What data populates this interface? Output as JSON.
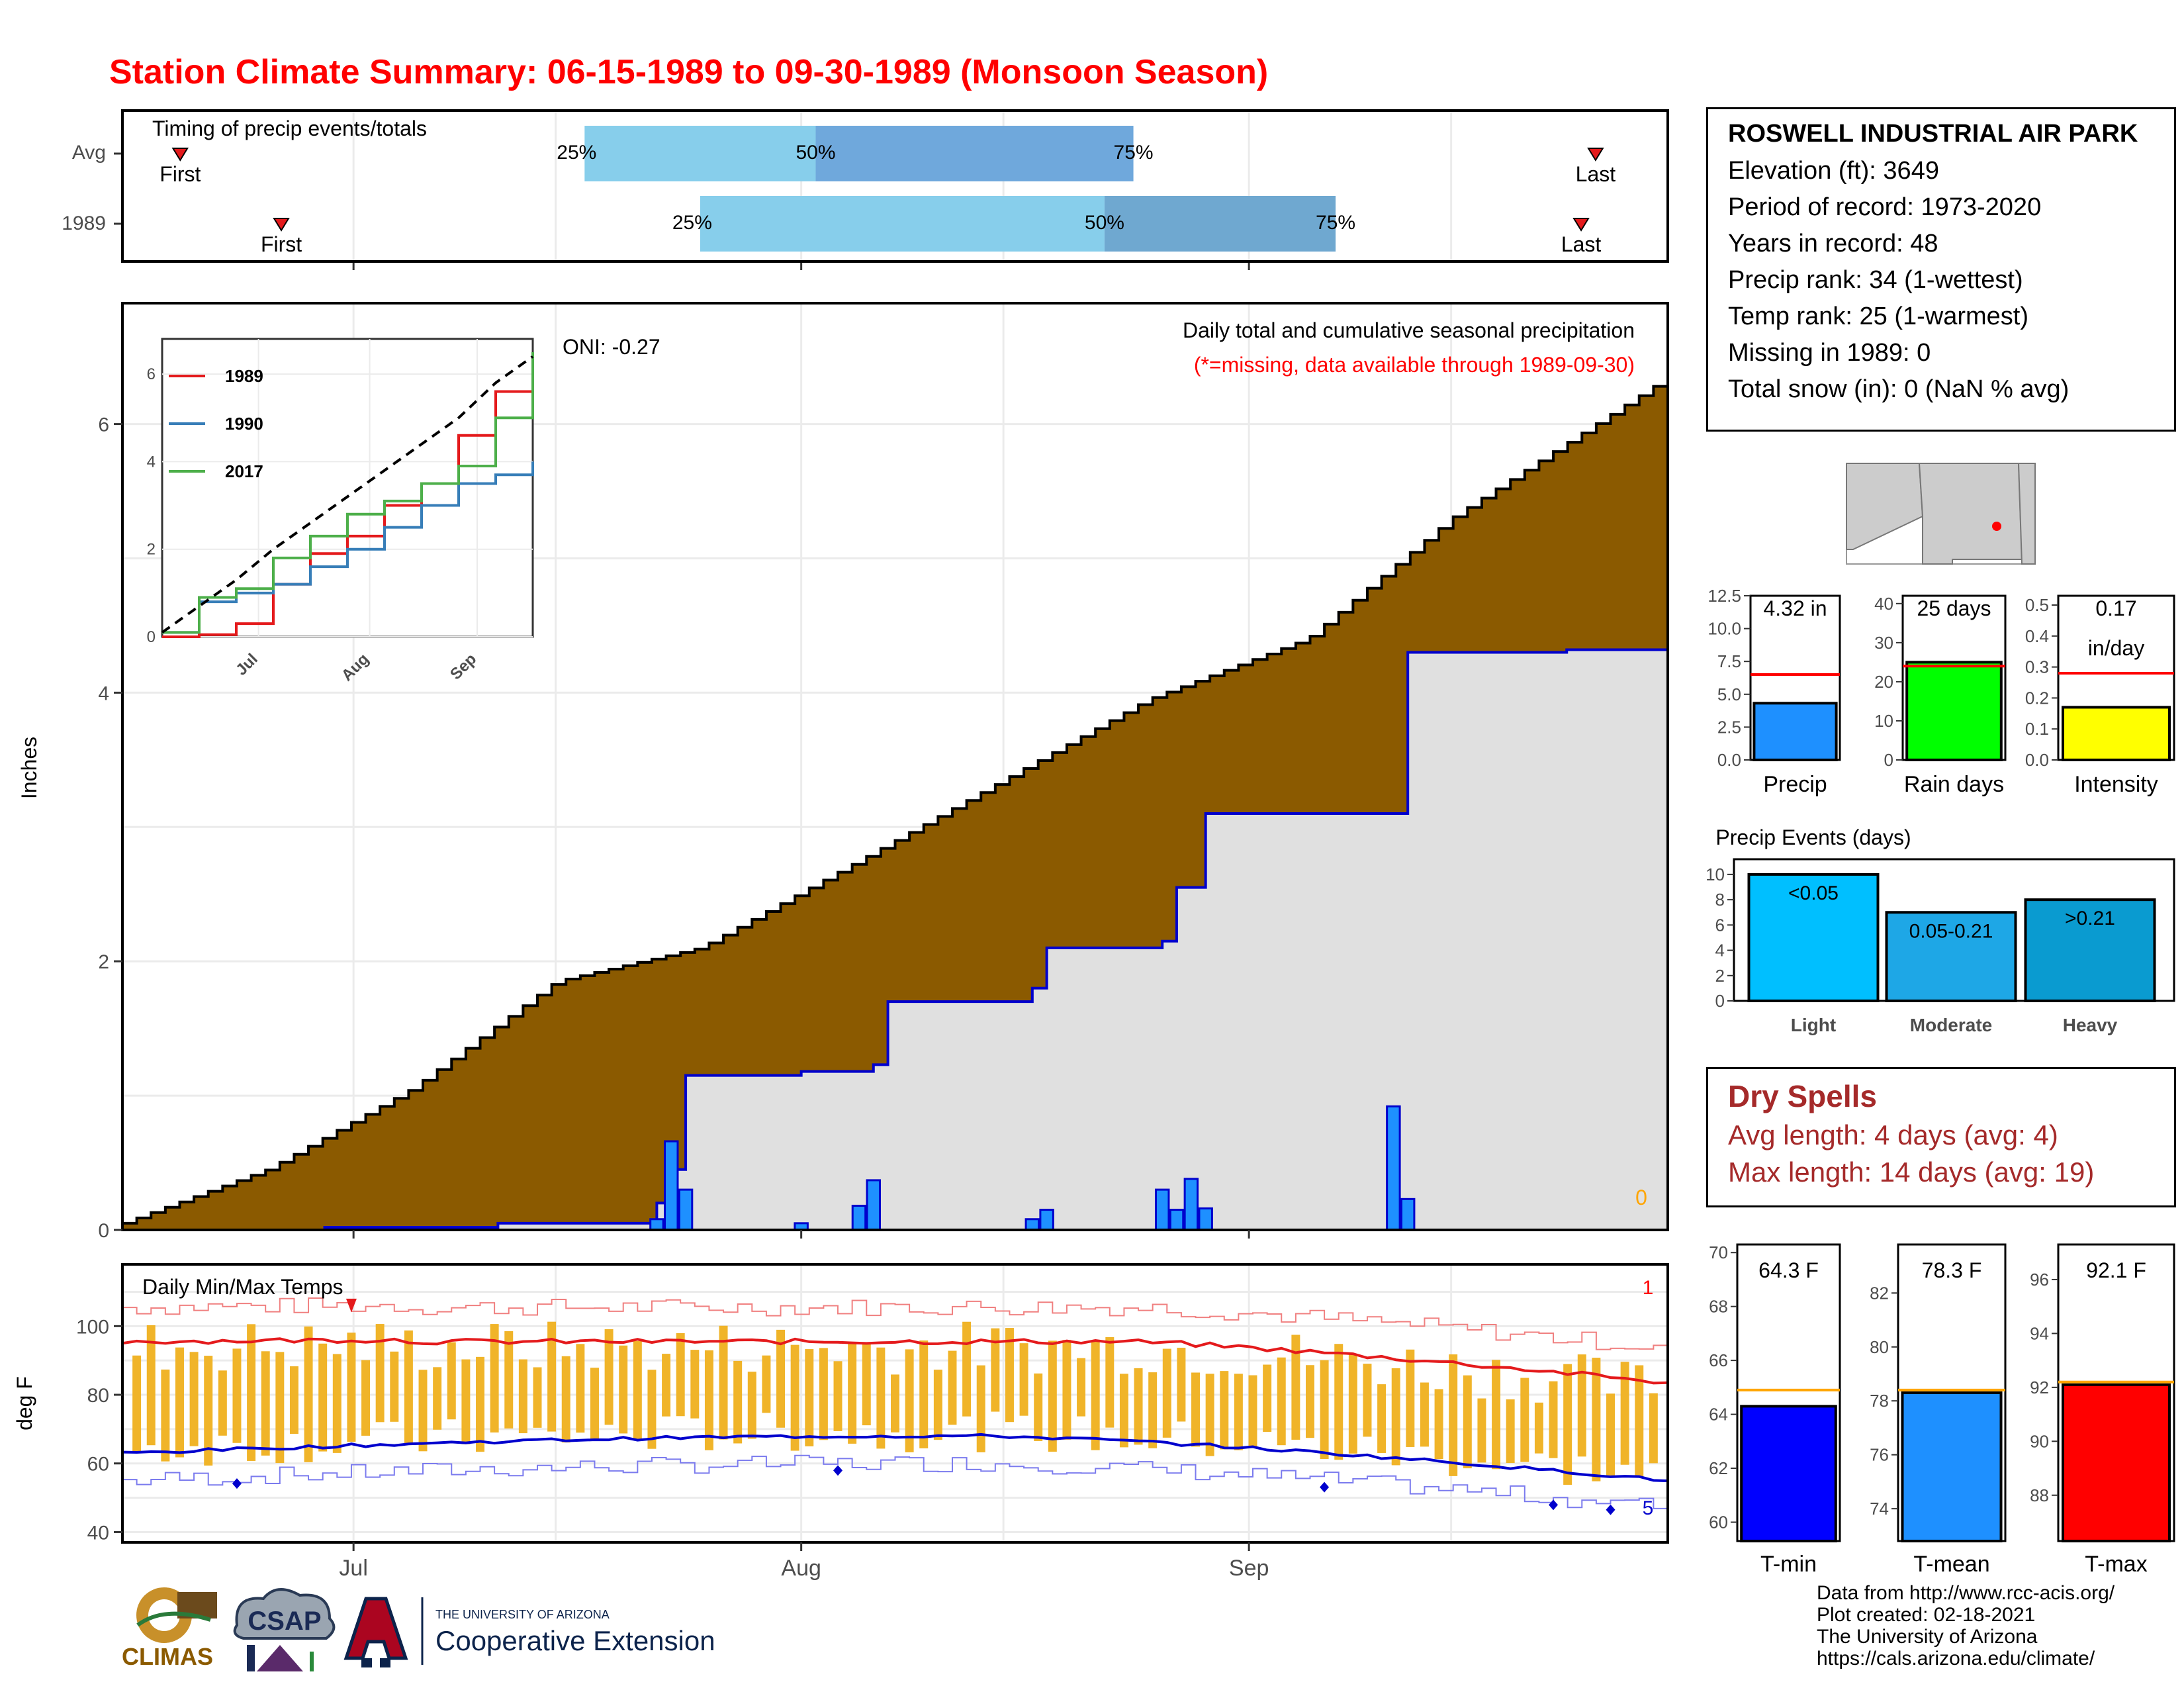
{
  "title": "Station Climate Summary: 06-15-1989 to 09-30-1989 (Monsoon Season)",
  "timing": {
    "label": "Timing of precip events/totals",
    "rows": [
      {
        "name": "Avg",
        "first": "06-19",
        "p25": "07-17",
        "p50": "08-02",
        "p75": "08-24",
        "last": "09-25"
      },
      {
        "name": "1989",
        "first": "06-26",
        "p25": "07-25",
        "p50": "08-22",
        "p75": "09-07",
        "last": "09-24"
      }
    ],
    "first_label": "First",
    "last_label": "Last",
    "p25_label": "25%",
    "p50_label": "50%",
    "p75_label": "75%"
  },
  "main_panel": {
    "ylabel": "Inches",
    "oni": "ONI: -0.27",
    "subtitle": "Daily total and cumulative seasonal precipitation",
    "missing_note": "(*=missing, data available through 1989-09-30)",
    "missing_count": "0",
    "yticks": [
      "0",
      "2",
      "4",
      "6"
    ],
    "xticks": [
      "Jul",
      "Aug",
      "Sep"
    ]
  },
  "inset": {
    "yticks": [
      "0",
      "2",
      "4",
      "6"
    ],
    "xticks": [
      "Jul",
      "Aug",
      "Sep"
    ],
    "legend": [
      {
        "name": "1989",
        "color": "#e41a1c"
      },
      {
        "name": "1990",
        "color": "#377eb8"
      },
      {
        "name": "2017",
        "color": "#4daf4a"
      }
    ]
  },
  "temp_panel": {
    "label": "Daily Min/Max Temps",
    "ylabel": "deg F",
    "yticks": [
      "40",
      "60",
      "80",
      "100"
    ],
    "xticks": [
      "Jul",
      "Aug",
      "Sep"
    ],
    "record_high_count": "1",
    "record_low_count": "5"
  },
  "station": {
    "name": "ROSWELL INDUSTRIAL AIR PARK",
    "elevation": "Elevation (ft): 3649",
    "period": "Period of record: 1973-2020",
    "years": "Years in record: 48",
    "precip_rank": "Precip rank: 34 (1-wettest)",
    "temp_rank": "Temp rank: 25 (1-warmest)",
    "missing": "Missing in 1989: 0",
    "snow": "Total snow (in): 0 (NaN % avg)"
  },
  "mini_bars": {
    "precip": {
      "label": "Precip",
      "value_label": "4.32 in",
      "yticks": [
        "0.0",
        "2.5",
        "5.0",
        "7.5",
        "10.0",
        "12.5"
      ]
    },
    "raindays": {
      "label": "Rain days",
      "value_label": "25 days",
      "yticks": [
        "0",
        "10",
        "20",
        "30",
        "40"
      ]
    },
    "intensity": {
      "label": "Intensity",
      "value_label": "0.17",
      "value_unit": "in/day",
      "yticks": [
        "0.0",
        "0.1",
        "0.2",
        "0.3",
        "0.4",
        "0.5"
      ]
    }
  },
  "events": {
    "title": "Precip Events (days)",
    "yticks": [
      "0",
      "2",
      "4",
      "6",
      "8",
      "10"
    ],
    "bars": [
      {
        "name": "Light",
        "range": "<0.05"
      },
      {
        "name": "Moderate",
        "range": "0.05-0.21"
      },
      {
        "name": "Heavy",
        "range": ">0.21"
      }
    ]
  },
  "dry_spells": {
    "title": "Dry Spells",
    "avg": "Avg length: 4 days (avg: 4)",
    "max": "Max length: 14 days (avg: 19)"
  },
  "temp_bars": {
    "tmin": {
      "label": "T-min",
      "value_label": "64.3 F",
      "yticks": [
        "60",
        "62",
        "64",
        "66",
        "68",
        "70"
      ]
    },
    "tmean": {
      "label": "T-mean",
      "value_label": "78.3 F",
      "yticks": [
        "74",
        "76",
        "78",
        "80",
        "82"
      ]
    },
    "tmax": {
      "label": "T-max",
      "value_label": "92.1 F",
      "yticks": [
        "88",
        "90",
        "92",
        "94",
        "96"
      ]
    }
  },
  "credits": {
    "line1": "Data from http://www.rcc-acis.org/",
    "line2": "Plot created: 02-18-2021",
    "line3": "The University of Arizona",
    "line4": "https://cals.arizona.edu/climate/"
  },
  "logos": {
    "climas": "CLIMAS",
    "csap": "CSAP",
    "ua_small": "THE UNIVERSITY OF ARIZONA",
    "ua_big": "Cooperative Extension"
  },
  "chart_data": [
    {
      "type": "area",
      "title": "Daily total and cumulative seasonal precipitation",
      "ylabel": "Inches",
      "ylim": [
        0,
        6.9
      ],
      "x_range": [
        "1989-06-15",
        "1989-09-30"
      ],
      "series": [
        {
          "name": "Avg cumulative",
          "color": "#8b5a00",
          "x": [
            "06-15",
            "06-25",
            "07-05",
            "07-15",
            "07-25",
            "08-05",
            "08-15",
            "08-25",
            "09-05",
            "09-15",
            "09-25",
            "09-30"
          ],
          "values": [
            0.05,
            0.45,
            1.05,
            1.85,
            2.1,
            2.75,
            3.35,
            3.95,
            4.4,
            5.3,
            6.0,
            6.35
          ]
        },
        {
          "name": "1989 cumulative",
          "color": "#0000cd",
          "x": [
            "06-15",
            "06-29",
            "07-11",
            "07-22",
            "07-23",
            "07-24",
            "08-01",
            "08-06",
            "08-07",
            "08-17",
            "08-18",
            "08-26",
            "08-27",
            "08-29",
            "09-11",
            "09-12",
            "09-23",
            "09-30"
          ],
          "values": [
            0.0,
            0.02,
            0.05,
            0.2,
            0.45,
            1.15,
            1.18,
            1.23,
            1.7,
            1.8,
            2.1,
            2.15,
            2.55,
            3.1,
            3.1,
            4.3,
            4.32,
            4.32
          ]
        },
        {
          "name": "1989 daily",
          "color": "#1e90ff",
          "x": [
            "07-22",
            "07-23",
            "07-24",
            "08-01",
            "08-05",
            "08-06",
            "08-17",
            "08-18",
            "08-26",
            "08-27",
            "08-28",
            "08-29",
            "09-11",
            "09-12"
          ],
          "values": [
            0.08,
            0.66,
            0.3,
            0.05,
            0.18,
            0.37,
            0.08,
            0.15,
            0.3,
            0.15,
            0.38,
            0.16,
            0.92,
            0.23
          ]
        }
      ]
    },
    {
      "type": "line",
      "title": "inset",
      "ylim": [
        0,
        6.5
      ],
      "series": [
        {
          "name": "1989",
          "values": [
            0.0,
            0.05,
            0.3,
            1.2,
            1.9,
            2.3,
            3.0,
            3.5,
            4.6,
            5.6,
            6.0
          ]
        },
        {
          "name": "1990",
          "values": [
            0.1,
            0.8,
            1.0,
            1.2,
            1.6,
            2.0,
            2.5,
            3.0,
            3.5,
            3.7,
            4.0
          ]
        },
        {
          "name": "2017",
          "values": [
            0.1,
            0.9,
            1.1,
            1.8,
            2.3,
            2.8,
            3.1,
            3.5,
            3.9,
            5.0,
            6.5
          ]
        },
        {
          "name": "Avg",
          "values": [
            0.1,
            0.7,
            1.3,
            2.0,
            2.6,
            3.2,
            3.8,
            4.4,
            5.0,
            5.8,
            6.4
          ]
        }
      ]
    },
    {
      "type": "line",
      "title": "Daily Min/Max Temps",
      "ylabel": "deg F",
      "ylim": [
        37,
        118
      ],
      "series": [
        {
          "name": "Avg max",
          "color": "#e41a1c",
          "x": [
            "06-15",
            "07-01",
            "07-15",
            "08-01",
            "08-15",
            "09-01",
            "09-15",
            "09-30"
          ],
          "values": [
            95,
            96,
            95,
            94,
            93,
            91,
            86,
            83
          ]
        },
        {
          "name": "Avg min",
          "color": "#0000cd",
          "x": [
            "06-15",
            "07-01",
            "07-15",
            "08-01",
            "08-15",
            "09-01",
            "09-15",
            "09-30"
          ],
          "values": [
            63,
            66,
            68,
            68,
            67,
            65,
            60,
            54
          ]
        }
      ]
    },
    {
      "type": "bar",
      "categories": [
        "Precip",
        "Rain days",
        "Intensity"
      ],
      "values": [
        4.32,
        25,
        0.17
      ],
      "averages": [
        6.5,
        24,
        0.28
      ]
    },
    {
      "type": "bar",
      "title": "Precip Events (days)",
      "categories": [
        "Light",
        "Moderate",
        "Heavy"
      ],
      "values": [
        10,
        7,
        8
      ],
      "ylim": [
        0,
        10
      ]
    },
    {
      "type": "bar",
      "categories": [
        "T-min",
        "T-mean",
        "T-max"
      ],
      "values": [
        64.3,
        78.3,
        92.1
      ],
      "averages": [
        64.9,
        78.4,
        92.2
      ]
    }
  ]
}
